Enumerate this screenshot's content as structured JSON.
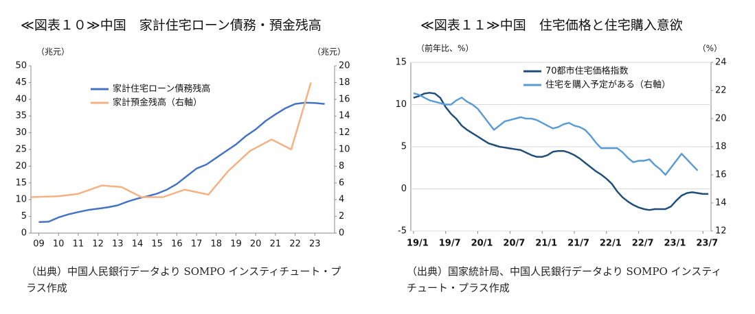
{
  "chart_data": [
    {
      "type": "line",
      "title": "≪図表１０≫中国　家計住宅ローン債務・預金残高",
      "ylabel": "（兆元）",
      "y2label": "（兆元）",
      "source": "（出典）中国人民銀行データより SOMPO インスティチュート・プラス作成",
      "xlim": [
        2008.6,
        2024
      ],
      "xticks": [
        {
          "value": 2009,
          "label": "09"
        },
        {
          "value": 2010,
          "label": "10"
        },
        {
          "value": 2011,
          "label": "11"
        },
        {
          "value": 2012,
          "label": "12"
        },
        {
          "value": 2013,
          "label": "13"
        },
        {
          "value": 2014,
          "label": "14"
        },
        {
          "value": 2015,
          "label": "15"
        },
        {
          "value": 2016,
          "label": "16"
        },
        {
          "value": 2017,
          "label": "17"
        },
        {
          "value": 2018,
          "label": "18"
        },
        {
          "value": 2019,
          "label": "19"
        },
        {
          "value": 2020,
          "label": "20"
        },
        {
          "value": 2021,
          "label": "21"
        },
        {
          "value": 2022,
          "label": "22"
        },
        {
          "value": 2023,
          "label": "23"
        }
      ],
      "ylim": [
        0,
        50
      ],
      "yticks": [
        0,
        5,
        10,
        15,
        20,
        25,
        30,
        35,
        40,
        45,
        50
      ],
      "y2lim": [
        0,
        20
      ],
      "y2ticks": [
        0,
        2,
        4,
        6,
        8,
        10,
        12,
        14,
        16,
        18,
        20
      ],
      "grid": false,
      "legend": "upper left",
      "series": [
        {
          "name": "家計住宅ローン債務残高",
          "color": "#4472c4",
          "x": [
            2009.0,
            2009.5,
            2010.0,
            2010.5,
            2011.0,
            2011.5,
            2012.0,
            2012.5,
            2013.0,
            2013.5,
            2014.0,
            2014.5,
            2015.0,
            2015.5,
            2016.0,
            2016.5,
            2017.0,
            2017.5,
            2018.0,
            2018.5,
            2019.0,
            2019.5,
            2020.0,
            2020.5,
            2021.0,
            2021.5,
            2022.0,
            2022.5,
            2023.0,
            2023.5
          ],
          "values": [
            3.3,
            3.4,
            4.7,
            5.6,
            6.3,
            6.9,
            7.3,
            7.7,
            8.3,
            9.4,
            10.3,
            11.0,
            11.8,
            13.0,
            14.7,
            17.0,
            19.3,
            20.5,
            22.5,
            24.5,
            26.5,
            29.0,
            31.0,
            33.5,
            35.5,
            37.3,
            38.6,
            39.0,
            38.9,
            38.6
          ]
        },
        {
          "name": "家計預金残高（右軸）",
          "color": "#f4b183",
          "axis": "y2",
          "x": [
            2008.6,
            2010.0,
            2011.0,
            2012.2,
            2013.2,
            2014.2,
            2015.3,
            2016.4,
            2017.6,
            2018.6,
            2019.7,
            2020.8,
            2021.8,
            2022.8
          ],
          "values": [
            4.3,
            4.4,
            4.7,
            5.7,
            5.5,
            4.3,
            4.3,
            5.2,
            4.6,
            7.4,
            9.8,
            11.2,
            10.0,
            18.0
          ]
        }
      ]
    },
    {
      "type": "line",
      "title": "≪図表１１≫中国　住宅価格と住宅購入意欲",
      "ylabel": "（前年比、%）",
      "y2label": "（%）",
      "source": "（出典）国家統計局、中国人民銀行データより SOMPO インスティチュート・プラス作成",
      "categories": [
        "19/1",
        null,
        null,
        null,
        null,
        null,
        "19/7",
        null,
        null,
        null,
        null,
        null,
        "20/1",
        null,
        null,
        null,
        null,
        null,
        "20/7",
        null,
        null,
        null,
        null,
        null,
        "21/1",
        null,
        null,
        null,
        null,
        null,
        "21/7",
        null,
        null,
        null,
        null,
        null,
        "22/1",
        null,
        null,
        null,
        null,
        null,
        "22/7",
        null,
        null,
        null,
        null,
        null,
        "23/1",
        null,
        null,
        null,
        null,
        null,
        "23/7",
        null
      ],
      "ylim": [
        -5,
        15
      ],
      "yticks": [
        -5,
        0,
        5,
        10,
        15
      ],
      "y2lim": [
        12,
        24
      ],
      "y2ticks": [
        12,
        14,
        16,
        18,
        20,
        22,
        24
      ],
      "grid": true,
      "legend": "upper center",
      "series": [
        {
          "name": "70都市住宅価格指数",
          "color": "#1f4e79",
          "values": [
            10.8,
            11.0,
            11.3,
            11.4,
            11.3,
            10.8,
            9.7,
            8.9,
            8.3,
            7.5,
            7.0,
            6.6,
            6.2,
            5.8,
            5.4,
            5.2,
            5.0,
            4.9,
            4.8,
            4.7,
            4.6,
            4.3,
            4.0,
            3.8,
            3.8,
            4.0,
            4.4,
            4.5,
            4.5,
            4.3,
            4.0,
            3.6,
            3.1,
            2.6,
            2.1,
            1.7,
            1.2,
            0.6,
            -0.3,
            -1.0,
            -1.5,
            -1.9,
            -2.2,
            -2.4,
            -2.5,
            -2.4,
            -2.4,
            -2.4,
            -2.1,
            -1.4,
            -0.8,
            -0.5,
            -0.4,
            -0.5,
            -0.6,
            -0.6
          ]
        },
        {
          "name": "住宅を購入予定がある（右軸）",
          "color": "#5b9bd5",
          "axis": "y2",
          "values": [
            21.8,
            21.7,
            21.5,
            21.3,
            21.2,
            21.1,
            21.0,
            21.0,
            21.3,
            21.5,
            21.2,
            21.0,
            20.7,
            20.2,
            19.7,
            19.2,
            19.5,
            19.8,
            19.9,
            20.0,
            20.1,
            20.0,
            20.0,
            19.9,
            19.7,
            19.5,
            19.3,
            19.4,
            19.6,
            19.7,
            19.5,
            19.4,
            19.2,
            18.8,
            18.3,
            17.9,
            17.9,
            17.9,
            17.9,
            17.6,
            17.2,
            16.9,
            17.0,
            17.0,
            17.1,
            16.7,
            16.4,
            16.0,
            16.5,
            17.0,
            17.5,
            17.1,
            16.7,
            16.3,
            null,
            null
          ]
        }
      ]
    }
  ]
}
